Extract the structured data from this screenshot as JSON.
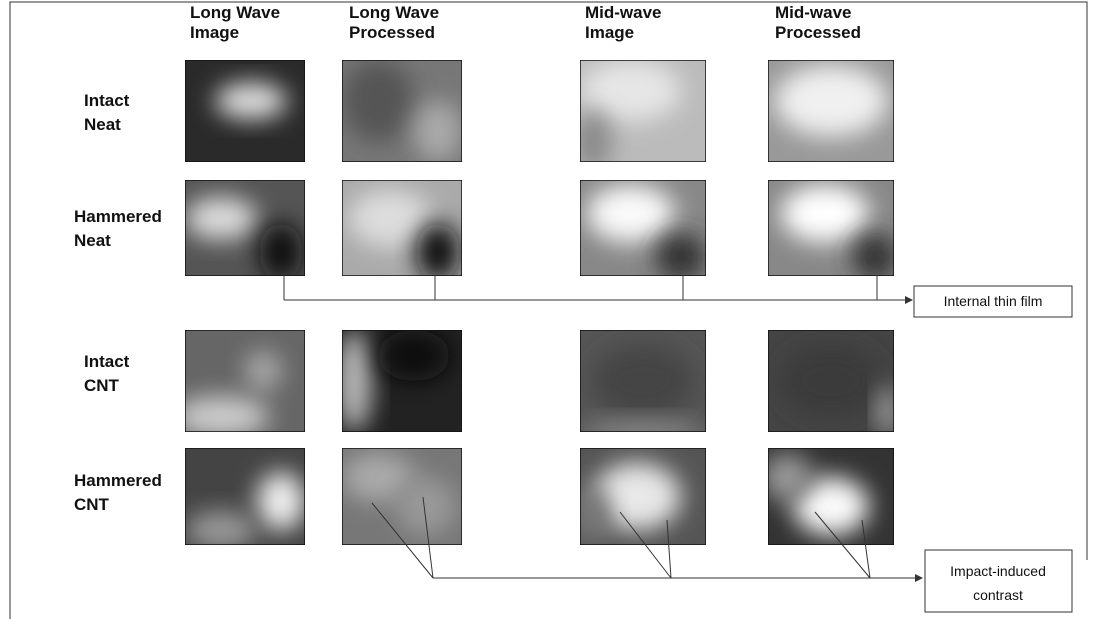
{
  "columns": [
    {
      "lines": [
        "Long Wave",
        "Image"
      ]
    },
    {
      "lines": [
        "Long Wave",
        "Processed"
      ]
    },
    {
      "lines": [
        "Mid-wave",
        "Image"
      ]
    },
    {
      "lines": [
        "Mid-wave",
        "Processed"
      ]
    }
  ],
  "rows": [
    {
      "lines": [
        "Intact",
        "Neat"
      ]
    },
    {
      "lines": [
        "Hammered",
        "Neat"
      ]
    },
    {
      "lines": [
        "Intact",
        "CNT"
      ]
    },
    {
      "lines": [
        "Hammered",
        "CNT"
      ]
    }
  ],
  "annotations": [
    {
      "lines": [
        "Internal thin film"
      ]
    },
    {
      "lines": [
        "Impact-induced",
        "contrast"
      ]
    }
  ]
}
